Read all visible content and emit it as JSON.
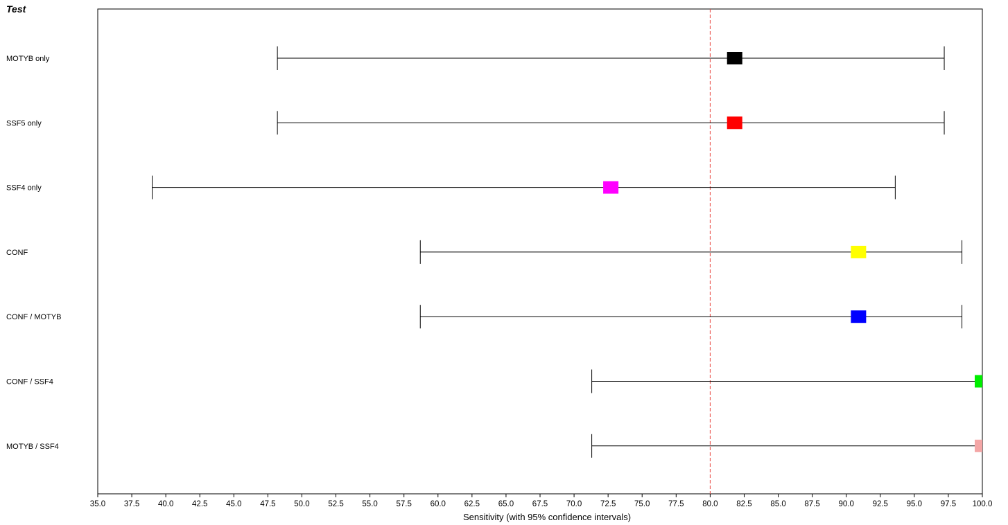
{
  "chart_data": {
    "type": "forest",
    "title": "Test",
    "xlabel": "Sensitivity (with 95% confidence intervals)",
    "xlim": [
      35.0,
      100.0
    ],
    "x_ticks": [
      "35.0",
      "37.5",
      "40.0",
      "42.5",
      "45.0",
      "47.5",
      "50.0",
      "52.5",
      "55.0",
      "57.5",
      "60.0",
      "62.5",
      "65.0",
      "67.5",
      "70.0",
      "72.5",
      "75.0",
      "77.5",
      "80.0",
      "82.5",
      "85.0",
      "87.5",
      "90.0",
      "92.5",
      "95.0",
      "97.5",
      "100.0"
    ],
    "reference_line": {
      "value": 80.0,
      "color": "#e8403a",
      "style": "dashed"
    },
    "grid": false,
    "series": [
      {
        "label": "MOTYB only",
        "estimate": 81.8,
        "lower": 48.2,
        "upper": 97.2,
        "color": "#000000"
      },
      {
        "label": "SSF5 only",
        "estimate": 81.8,
        "lower": 48.2,
        "upper": 97.2,
        "color": "#ff0000"
      },
      {
        "label": "SSF4 only",
        "estimate": 72.7,
        "lower": 39.0,
        "upper": 93.6,
        "color": "#ff00ff"
      },
      {
        "label": "CONF",
        "estimate": 90.9,
        "lower": 58.7,
        "upper": 98.5,
        "color": "#ffff00"
      },
      {
        "label": "CONF / MOTYB",
        "estimate": 90.9,
        "lower": 58.7,
        "upper": 98.5,
        "color": "#0000ff"
      },
      {
        "label": "CONF / SSF4",
        "estimate": 100.0,
        "lower": 71.3,
        "upper": 100.0,
        "color": "#00ee00"
      },
      {
        "label": "MOTYB / SSF4",
        "estimate": 100.0,
        "lower": 71.3,
        "upper": 100.0,
        "color": "#f4a6a6"
      }
    ]
  }
}
